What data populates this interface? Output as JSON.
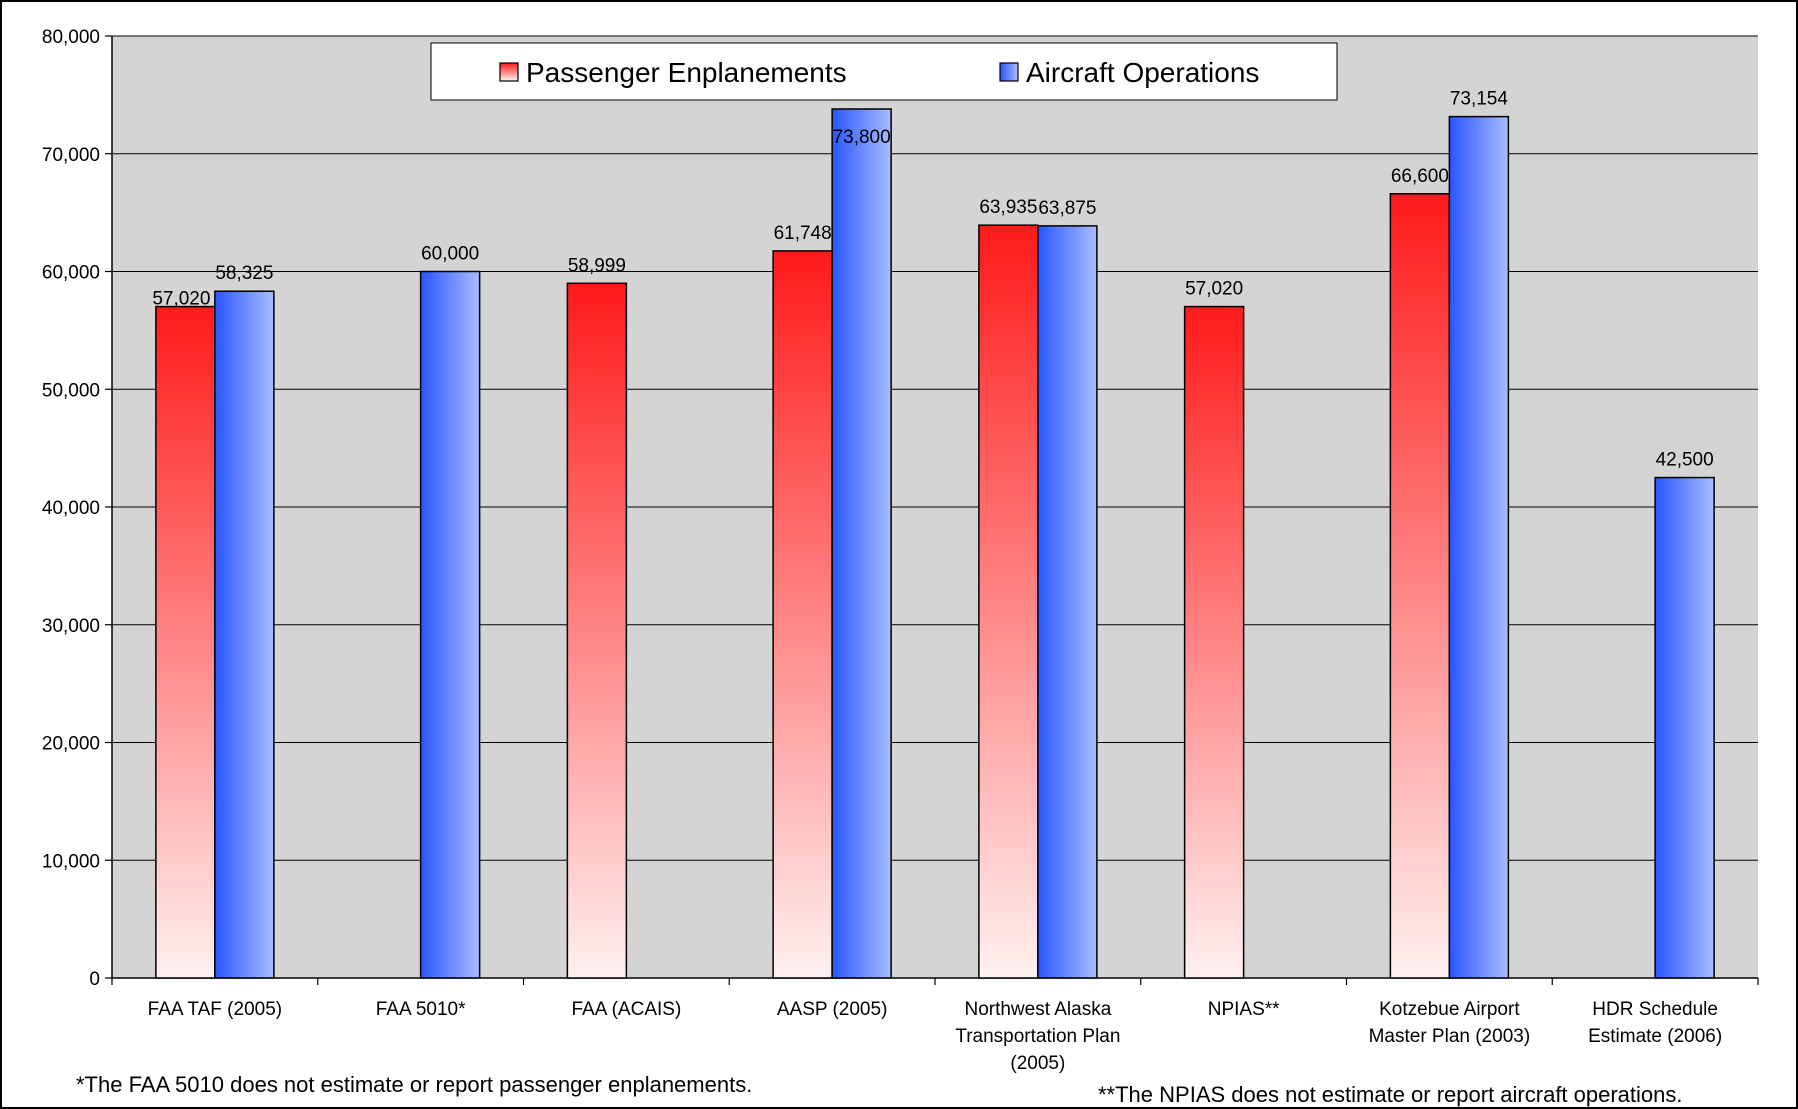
{
  "chart_data": {
    "type": "bar",
    "categories": [
      [
        "FAA TAF (2005)"
      ],
      [
        "FAA 5010*"
      ],
      [
        "FAA (ACAIS)"
      ],
      [
        "AASP (2005)"
      ],
      [
        "Northwest Alaska",
        "Transportation Plan",
        "(2005)"
      ],
      [
        "NPIAS**"
      ],
      [
        "Kotzebue Airport",
        "Master Plan (2003)"
      ],
      [
        "HDR Schedule",
        "Estimate (2006)"
      ]
    ],
    "series": [
      {
        "name": "Passenger Enplanements",
        "values": [
          57020,
          null,
          58999,
          61748,
          63935,
          57020,
          66600,
          null
        ],
        "labels": [
          "57,020",
          "",
          "58,999",
          "61,748",
          "63,935",
          "57,020",
          "66,600",
          ""
        ],
        "color_top": "#ff1a1a",
        "color_bottom": "#fff0f0"
      },
      {
        "name": "Aircraft Operations",
        "values": [
          58325,
          60000,
          null,
          73800,
          63875,
          null,
          73154,
          42500
        ],
        "labels": [
          "58,325",
          "60,000",
          "",
          "73,800",
          "63,875",
          "",
          "73,154",
          "42,500"
        ],
        "color_left": "#2a55ff",
        "color_right": "#a8bcff"
      }
    ],
    "ylim": [
      0,
      80000
    ],
    "yticks": [
      0,
      10000,
      20000,
      30000,
      40000,
      50000,
      60000,
      70000,
      80000
    ],
    "ytick_labels": [
      "0",
      "10,000",
      "20,000",
      "30,000",
      "40,000",
      "50,000",
      "60,000",
      "70,000",
      "80,000"
    ],
    "grid": true,
    "legend_position": "top-center",
    "plot_background": "#d4d4d4"
  },
  "footnotes": {
    "left": "*The FAA 5010 does not estimate or report passenger enplanements.",
    "right": "**The NPIAS does not estimate or report aircraft operations."
  }
}
